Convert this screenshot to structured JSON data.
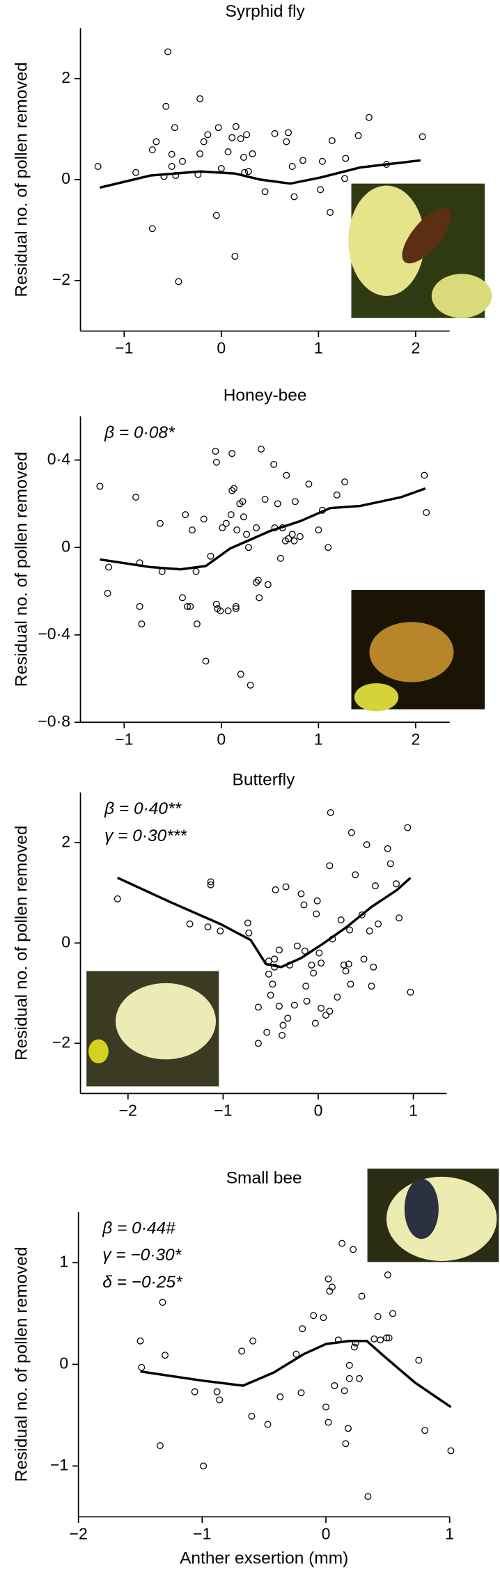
{
  "chart_data": [
    {
      "type": "scatter",
      "title": "Syrphid fly",
      "ylabel": "Residual no. of pollen removed",
      "annotations": [],
      "color": "#000000",
      "xlim": [
        -1.45,
        2.35
      ],
      "ylim": [
        -3,
        3
      ],
      "xticks": [
        {
          "value": -1,
          "label": "−1"
        },
        0,
        1,
        2
      ],
      "yticks": [
        {
          "value": -2,
          "label": "−2"
        },
        0,
        2
      ],
      "x": [
        -1.27,
        -0.88,
        -0.71,
        -0.71,
        -0.67,
        -0.59,
        -0.57,
        -0.55,
        -0.51,
        -0.51,
        -0.48,
        -0.44,
        -0.47,
        -0.4,
        -0.22,
        -0.22,
        -0.18,
        -0.14,
        -0.24,
        -0.05,
        -0.03,
        0,
        0.07,
        0.11,
        0.15,
        0.14,
        0.2,
        0.23,
        0.24,
        0.26,
        0.28,
        0.32,
        0.45,
        0.55,
        0.67,
        0.69,
        0.73,
        0.75,
        0.84,
        1.02,
        1.04,
        1.12,
        1.14,
        1.27,
        1.28,
        1.41,
        1.52,
        1.7,
        2.07
      ],
      "y": [
        0.26,
        0.14,
        -0.97,
        0.59,
        0.75,
        0.06,
        1.45,
        2.53,
        0.26,
        0.5,
        1.03,
        -2.02,
        0.08,
        0.36,
        1.6,
        0.51,
        0.75,
        0.89,
        0.1,
        -0.71,
        1.03,
        0.22,
        0.55,
        0.83,
        1.05,
        -1.52,
        0.81,
        0.44,
        0.14,
        0.89,
        0.16,
        0.51,
        -0.24,
        0.91,
        0.75,
        0.93,
        0.26,
        -0.34,
        0.38,
        -0.2,
        0.36,
        -0.65,
        0.77,
        0.02,
        0.42,
        0.87,
        1.23,
        0.3,
        0.85
      ],
      "curve_x": [
        -1.25,
        -0.73,
        -0.22,
        0.14,
        0.4,
        0.71,
        1.02,
        1.43,
        2.05
      ],
      "curve_y": [
        -0.16,
        0.08,
        0.16,
        0.12,
        0,
        -0.08,
        0.04,
        0.24,
        0.38
      ]
    },
    {
      "type": "scatter",
      "title": "Honey-bee",
      "ylabel": "Residual no. of pollen removed",
      "annotations": [
        "β = 0·08*"
      ],
      "color": "#000000",
      "xlim": [
        -1.45,
        2.35
      ],
      "ylim": [
        -0.8,
        0.6
      ],
      "xticks": [
        {
          "value": -1,
          "label": "−1"
        },
        0,
        1,
        2
      ],
      "yticks": [
        {
          "value": -0.8,
          "label": "−0·8"
        },
        {
          "value": -0.4,
          "label": "−0·4"
        },
        0,
        {
          "value": 0.4,
          "label": "0·4"
        }
      ],
      "x": [
        -1.25,
        -1.16,
        -1.17,
        -0.88,
        -0.84,
        -0.84,
        -0.82,
        -0.63,
        -0.61,
        -0.4,
        -0.37,
        -0.35,
        -0.32,
        -0.3,
        -0.26,
        -0.25,
        -0.18,
        -0.16,
        -0.11,
        -0.06,
        -0.05,
        -0.05,
        -0.04,
        -0.01,
        0.01,
        0.05,
        0.07,
        0.1,
        0.11,
        0.11,
        0.13,
        0.15,
        0.15,
        0.16,
        0.19,
        0.2,
        0.22,
        0.23,
        0.26,
        0.28,
        0.3,
        0.36,
        0.36,
        0.38,
        0.39,
        0.41,
        0.45,
        0.48,
        0.54,
        0.55,
        0.58,
        0.61,
        0.63,
        0.67,
        0.66,
        0.69,
        0.73,
        0.75,
        0.76,
        0.81,
        0.9,
        1.0,
        1.04,
        1.1,
        1.19,
        1.27,
        2.09,
        2.11
      ],
      "y": [
        0.28,
        -0.09,
        -0.21,
        0.23,
        -0.07,
        -0.27,
        -0.35,
        0.11,
        -0.11,
        -0.23,
        0.15,
        -0.27,
        -0.27,
        0.08,
        -0.11,
        -0.35,
        0.13,
        -0.52,
        -0.04,
        0.44,
        0.39,
        -0.26,
        -0.28,
        -0.29,
        0.09,
        0.11,
        -0.29,
        0.15,
        0.43,
        0.26,
        0.27,
        -0.28,
        -0.27,
        0.08,
        0.2,
        -0.58,
        0.21,
        0.14,
        0.06,
        0.0,
        -0.63,
        0.09,
        -0.16,
        -0.15,
        -0.23,
        0.45,
        0.22,
        -0.17,
        0.38,
        0.09,
        0.2,
        -0.05,
        0.09,
        0.33,
        0.03,
        0.04,
        0.06,
        0.03,
        0.21,
        0.05,
        0.29,
        0.08,
        0.17,
        0.0,
        0.24,
        0.3,
        0.33,
        0.16
      ],
      "curve_x": [
        -1.25,
        -0.73,
        -0.42,
        -0.16,
        0.09,
        0.5,
        0.81,
        1.12,
        1.43,
        1.85,
        2.1
      ],
      "curve_y": [
        -0.055,
        -0.09,
        -0.1,
        -0.085,
        -0.005,
        0.075,
        0.12,
        0.18,
        0.19,
        0.23,
        0.27
      ]
    },
    {
      "type": "scatter",
      "title": "Butterfly",
      "ylabel": "Residual no. of pollen removed",
      "annotations": [
        "β = 0·40**",
        "γ = 0·30***"
      ],
      "color": "#000000",
      "xlim": [
        -2.5,
        1.35
      ],
      "ylim": [
        -3,
        3
      ],
      "xticks": [
        {
          "value": -2,
          "label": "−2"
        },
        {
          "value": -1,
          "label": "−1"
        },
        0,
        1
      ],
      "yticks": [
        {
          "value": -2,
          "label": "−2"
        },
        0,
        2
      ],
      "x": [
        -2.11,
        -1.35,
        -1.16,
        -1.13,
        -1.13,
        -1.03,
        -0.74,
        -0.73,
        -0.63,
        -0.63,
        -0.54,
        -0.52,
        -0.52,
        -0.5,
        -0.48,
        -0.46,
        -0.46,
        -0.45,
        -0.41,
        -0.41,
        -0.38,
        -0.37,
        -0.34,
        -0.32,
        -0.3,
        -0.25,
        -0.22,
        -0.18,
        -0.15,
        -0.14,
        -0.13,
        -0.12,
        -0.07,
        -0.05,
        -0.03,
        -0.02,
        -0.01,
        0.01,
        0.03,
        0.03,
        0.08,
        0.12,
        0.12,
        0.13,
        0.15,
        0.2,
        0.24,
        0.27,
        0.29,
        0.32,
        0.33,
        0.34,
        0.35,
        0.39,
        0.46,
        0.48,
        0.51,
        0.54,
        0.56,
        0.58,
        0.6,
        0.63,
        0.73,
        0.76,
        0.82,
        0.85,
        0.94,
        0.97
      ],
      "y": [
        0.88,
        0.38,
        0.32,
        1.22,
        1.16,
        0.24,
        0.4,
        0.2,
        -1.28,
        -2.0,
        -1.78,
        -0.62,
        -0.36,
        -1.04,
        -0.82,
        -0.32,
        -0.48,
        1.06,
        -0.14,
        -1.26,
        -1.84,
        -1.64,
        1.12,
        -1.5,
        -0.44,
        -1.24,
        -0.06,
        0.98,
        0.76,
        -0.16,
        -0.86,
        -1.16,
        -0.44,
        -0.6,
        -1.6,
        0.58,
        0.84,
        -0.2,
        -0.4,
        -1.3,
        -1.44,
        -1.36,
        1.54,
        2.6,
        0.08,
        -1.08,
        0.46,
        -0.44,
        -0.56,
        -0.42,
        0.26,
        -0.82,
        2.2,
        1.36,
        0.56,
        -0.32,
        1.96,
        0.24,
        -0.86,
        -0.48,
        1.14,
        0.38,
        1.88,
        1.58,
        1.18,
        0.5,
        2.3,
        -0.98
      ],
      "curve_x": [
        -2.11,
        -1.56,
        -1.03,
        -0.71,
        -0.55,
        -0.39,
        -0.18,
        0.03,
        0.3,
        0.56,
        0.83,
        0.97
      ],
      "curve_y": [
        1.3,
        0.82,
        0.38,
        0.06,
        -0.42,
        -0.48,
        -0.3,
        -0.04,
        0.32,
        0.72,
        1.06,
        1.3
      ]
    },
    {
      "type": "scatter",
      "title": "Small bee",
      "ylabel": "Residual no. of pollen removed",
      "xlabel": "Anther exsertion (mm)",
      "annotations": [
        "β = 0·44#",
        "γ = −0·30*",
        "δ = −0·25*"
      ],
      "color": "#000000",
      "xlim": [
        -2,
        1
      ],
      "ylim": [
        -1.5,
        1.5
      ],
      "xticks": [
        {
          "value": -2,
          "label": "−2"
        },
        {
          "value": -1,
          "label": "−1"
        },
        0,
        1
      ],
      "yticks": [
        {
          "value": -1,
          "label": "−1"
        },
        0,
        1
      ],
      "x": [
        -1.5,
        -1.49,
        -1.32,
        -1.3,
        -1.34,
        -1.06,
        -0.99,
        -0.88,
        -0.86,
        -0.68,
        -0.59,
        -0.6,
        -0.47,
        -0.37,
        -0.24,
        -0.2,
        -0.19,
        -0.1,
        -0.02,
        0.0,
        0.02,
        0.02,
        0.03,
        0.05,
        0.07,
        0.1,
        0.13,
        0.15,
        0.16,
        0.18,
        0.19,
        0.19,
        0.22,
        0.23,
        0.24,
        0.27,
        0.29,
        0.34,
        0.39,
        0.42,
        0.44,
        0.49,
        0.51,
        0.5,
        0.54,
        0.75,
        0.8,
        1.01
      ],
      "y": [
        0.23,
        -0.03,
        0.61,
        0.09,
        -0.8,
        -0.27,
        -1.0,
        -0.27,
        -0.35,
        0.13,
        0.23,
        -0.51,
        -0.59,
        -0.32,
        0.1,
        -0.28,
        0.35,
        0.48,
        0.46,
        -0.42,
        -0.57,
        0.84,
        0.72,
        0.76,
        -0.21,
        0.24,
        1.19,
        -0.26,
        -0.78,
        -0.63,
        -0.01,
        -0.14,
        1.13,
        0.17,
        0.21,
        -0.14,
        0.67,
        -1.3,
        0.25,
        0.47,
        0.24,
        0.26,
        0.26,
        0.88,
        0.5,
        0.04,
        -0.65,
        -0.85
      ],
      "curve_x": [
        -1.5,
        -1.0,
        -0.67,
        -0.42,
        -0.18,
        0,
        0.19,
        0.33,
        0.47,
        0.72,
        1.01
      ],
      "curve_y": [
        -0.07,
        -0.16,
        -0.21,
        -0.08,
        0.1,
        0.2,
        0.23,
        0.23,
        0.08,
        -0.18,
        -0.42
      ]
    }
  ]
}
